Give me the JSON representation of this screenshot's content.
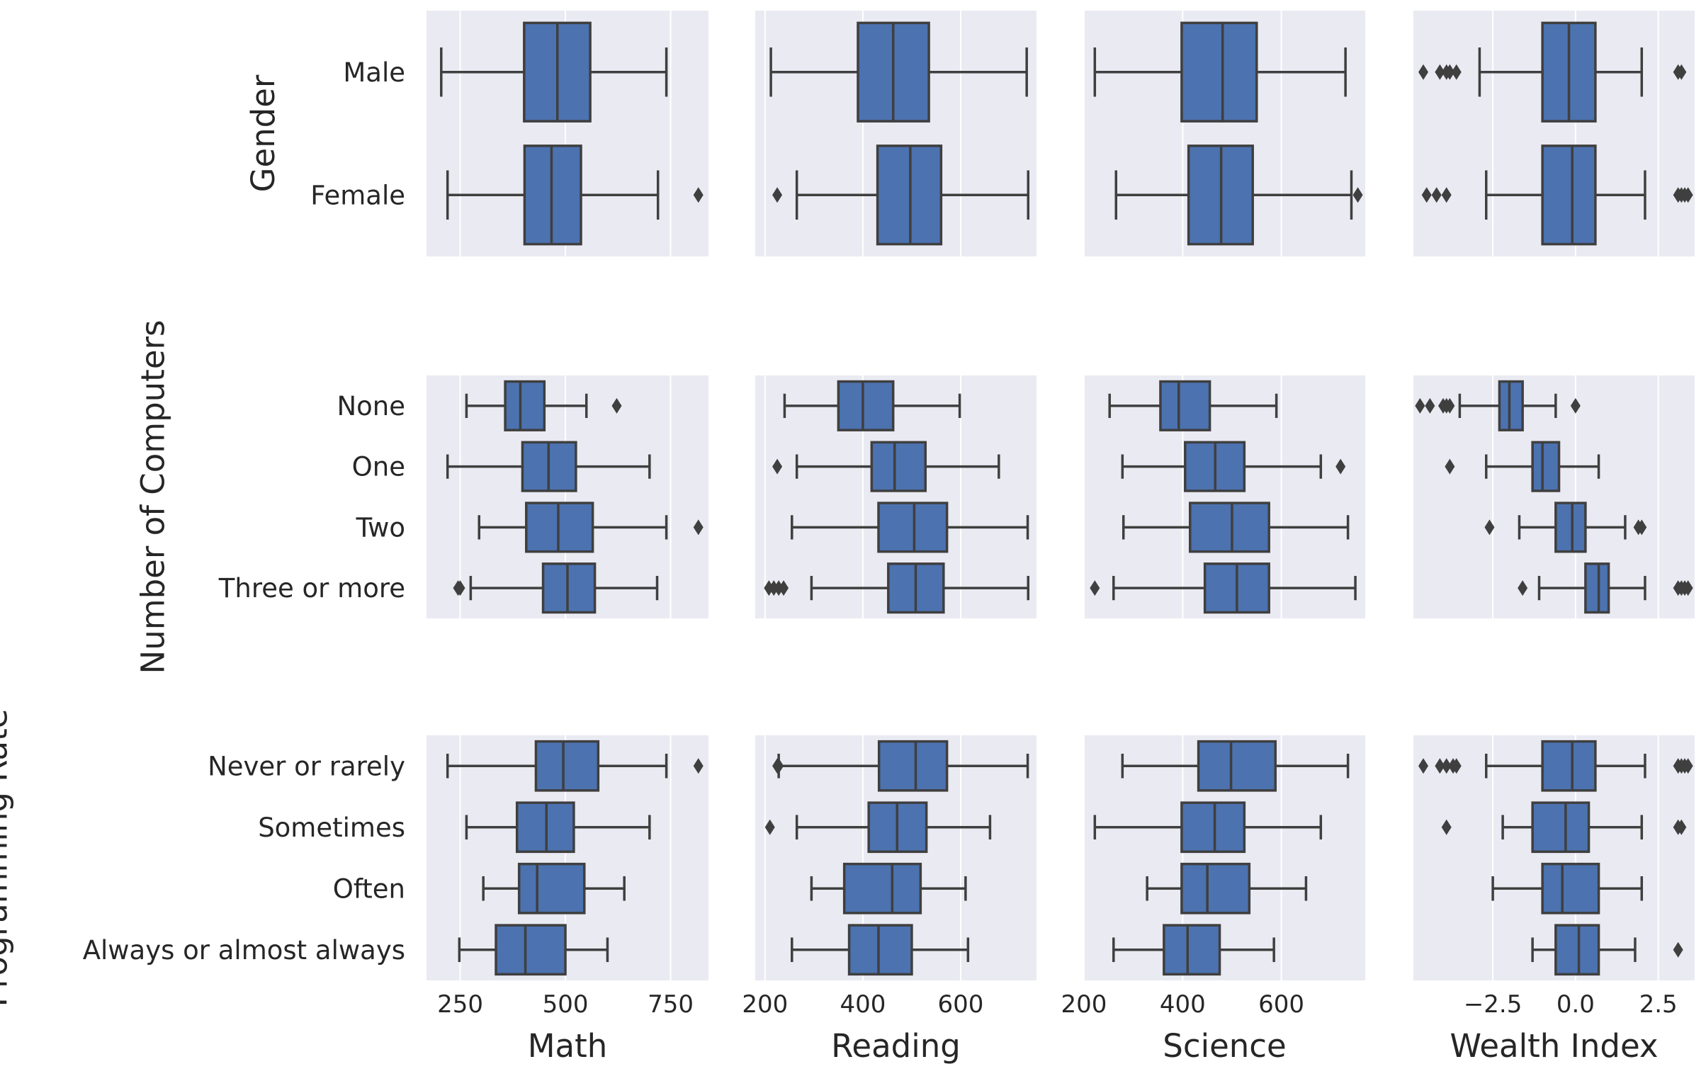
{
  "chart_data": {
    "type": "boxplot",
    "style": {
      "panel_bg": "#eaeaf2",
      "grid": "#ffffff",
      "box_fill": "#4c72b0",
      "line": "#3f3f3f",
      "text": "#262626"
    },
    "columns": [
      {
        "xlabel": "Math",
        "xlim": [
          170,
          840
        ],
        "ticks": [
          250,
          500,
          750
        ],
        "tick_labels": [
          "250",
          "500",
          "750"
        ]
      },
      {
        "xlabel": "Reading",
        "xlim": [
          180,
          755
        ],
        "ticks": [
          200,
          400,
          600
        ],
        "tick_labels": [
          "200",
          "400",
          "600"
        ]
      },
      {
        "xlabel": "Science",
        "xlim": [
          200,
          770
        ],
        "ticks": [
          200,
          400,
          600
        ],
        "tick_labels": [
          "200",
          "400",
          "600"
        ]
      },
      {
        "xlabel": "Wealth Index",
        "xlim": [
          -4.9,
          3.6
        ],
        "ticks": [
          -2.5,
          0.0,
          2.5
        ],
        "tick_labels": [
          "−2.5",
          "0.0",
          "2.5"
        ]
      }
    ],
    "rows": [
      {
        "ylabel": "Gender",
        "categories": [
          "Male",
          "Female"
        ],
        "boxes": [
          [
            {
              "whislo": 205,
              "q1": 402,
              "med": 481,
              "q3": 559,
              "whishi": 740,
              "fliers": []
            },
            {
              "whislo": 220,
              "q1": 403,
              "med": 467,
              "q3": 537,
              "whishi": 720,
              "fliers": [
                816
              ]
            }
          ],
          [
            {
              "whislo": 212,
              "q1": 390,
              "med": 462,
              "q3": 535,
              "whishi": 735,
              "fliers": []
            },
            {
              "whislo": 265,
              "q1": 430,
              "med": 497,
              "q3": 560,
              "whishi": 738,
              "fliers": [
                225
              ]
            }
          ],
          [
            {
              "whislo": 222,
              "q1": 398,
              "med": 481,
              "q3": 550,
              "whishi": 730,
              "fliers": []
            },
            {
              "whislo": 265,
              "q1": 412,
              "med": 478,
              "q3": 542,
              "whishi": 742,
              "fliers": [
                755
              ]
            }
          ],
          [
            {
              "whislo": -2.9,
              "q1": -1.0,
              "med": -0.2,
              "q3": 0.6,
              "whishi": 2.0,
              "fliers": [
                -4.6,
                -4.1,
                -3.9,
                -3.8,
                -3.6,
                3.1,
                3.2
              ]
            },
            {
              "whislo": -2.7,
              "q1": -1.0,
              "med": -0.1,
              "q3": 0.6,
              "whishi": 2.1,
              "fliers": [
                -4.5,
                -4.2,
                -3.9,
                3.1,
                3.2,
                3.3,
                3.4
              ]
            }
          ]
        ]
      },
      {
        "ylabel": "Number of Computers",
        "categories": [
          "None",
          "One",
          "Two",
          "Three or more"
        ],
        "boxes": [
          [
            {
              "whislo": 265,
              "q1": 357,
              "med": 393,
              "q3": 450,
              "whishi": 550,
              "fliers": [
                622
              ]
            },
            {
              "whislo": 220,
              "q1": 398,
              "med": 460,
              "q3": 525,
              "whishi": 700,
              "fliers": []
            },
            {
              "whislo": 295,
              "q1": 407,
              "med": 483,
              "q3": 565,
              "whishi": 740,
              "fliers": [
                816
              ]
            },
            {
              "whislo": 275,
              "q1": 447,
              "med": 505,
              "q3": 570,
              "whishi": 718,
              "fliers": [
                245,
                250
              ]
            }
          ],
          [
            {
              "whislo": 240,
              "q1": 350,
              "med": 400,
              "q3": 462,
              "whishi": 598,
              "fliers": []
            },
            {
              "whislo": 265,
              "q1": 418,
              "med": 465,
              "q3": 528,
              "whishi": 678,
              "fliers": [
                225
              ]
            },
            {
              "whislo": 255,
              "q1": 432,
              "med": 505,
              "q3": 572,
              "whishi": 737,
              "fliers": []
            },
            {
              "whislo": 295,
              "q1": 452,
              "med": 508,
              "q3": 565,
              "whishi": 738,
              "fliers": [
                208,
                218,
                228,
                238
              ]
            }
          ],
          [
            {
              "whislo": 252,
              "q1": 355,
              "med": 392,
              "q3": 455,
              "whishi": 590,
              "fliers": []
            },
            {
              "whislo": 278,
              "q1": 405,
              "med": 466,
              "q3": 525,
              "whishi": 680,
              "fliers": [
                720
              ]
            },
            {
              "whislo": 280,
              "q1": 415,
              "med": 500,
              "q3": 575,
              "whishi": 735,
              "fliers": []
            },
            {
              "whislo": 260,
              "q1": 445,
              "med": 510,
              "q3": 575,
              "whishi": 750,
              "fliers": [
                222
              ]
            }
          ],
          [
            {
              "whislo": -3.5,
              "q1": -2.3,
              "med": -2.0,
              "q3": -1.6,
              "whishi": -0.6,
              "fliers": [
                -4.7,
                -4.4,
                -4.0,
                -3.9,
                -3.8,
                0.0
              ]
            },
            {
              "whislo": -2.7,
              "q1": -1.3,
              "med": -1.0,
              "q3": -0.5,
              "whishi": 0.7,
              "fliers": [
                -3.8
              ]
            },
            {
              "whislo": -1.7,
              "q1": -0.6,
              "med": -0.1,
              "q3": 0.3,
              "whishi": 1.5,
              "fliers": [
                -2.6,
                1.9,
                2.0
              ]
            },
            {
              "whislo": -1.1,
              "q1": 0.3,
              "med": 0.7,
              "q3": 1.0,
              "whishi": 2.1,
              "fliers": [
                -1.6,
                3.1,
                3.2,
                3.3,
                3.4
              ]
            }
          ]
        ]
      },
      {
        "ylabel": "Programming Rate",
        "categories": [
          "Never or rarely",
          "Sometimes",
          "Often",
          "Always or almost always"
        ],
        "boxes": [
          [
            {
              "whislo": 220,
              "q1": 430,
              "med": 495,
              "q3": 578,
              "whishi": 740,
              "fliers": [
                816
              ]
            },
            {
              "whislo": 265,
              "q1": 385,
              "med": 455,
              "q3": 520,
              "whishi": 700,
              "fliers": []
            },
            {
              "whislo": 305,
              "q1": 390,
              "med": 433,
              "q3": 545,
              "whishi": 640,
              "fliers": []
            },
            {
              "whislo": 248,
              "q1": 335,
              "med": 405,
              "q3": 500,
              "whishi": 600,
              "fliers": []
            }
          ],
          [
            {
              "whislo": 228,
              "q1": 433,
              "med": 508,
              "q3": 572,
              "whishi": 737,
              "fliers": [
                225,
                228
              ]
            },
            {
              "whislo": 265,
              "q1": 412,
              "med": 470,
              "q3": 530,
              "whishi": 660,
              "fliers": [
                210
              ]
            },
            {
              "whislo": 295,
              "q1": 362,
              "med": 460,
              "q3": 518,
              "whishi": 610,
              "fliers": []
            },
            {
              "whislo": 255,
              "q1": 372,
              "med": 432,
              "q3": 500,
              "whishi": 615,
              "fliers": []
            }
          ],
          [
            {
              "whislo": 278,
              "q1": 432,
              "med": 498,
              "q3": 588,
              "whishi": 735,
              "fliers": []
            },
            {
              "whislo": 222,
              "q1": 398,
              "med": 465,
              "q3": 525,
              "whishi": 680,
              "fliers": []
            },
            {
              "whislo": 328,
              "q1": 398,
              "med": 450,
              "q3": 535,
              "whishi": 650,
              "fliers": []
            },
            {
              "whislo": 260,
              "q1": 362,
              "med": 410,
              "q3": 475,
              "whishi": 585,
              "fliers": []
            }
          ],
          [
            {
              "whislo": -2.7,
              "q1": -1.0,
              "med": -0.1,
              "q3": 0.6,
              "whishi": 2.1,
              "fliers": [
                -4.6,
                -4.1,
                -3.9,
                -3.7,
                -3.6,
                3.1,
                3.2,
                3.3,
                3.4
              ]
            },
            {
              "whislo": -2.2,
              "q1": -1.3,
              "med": -0.3,
              "q3": 0.4,
              "whishi": 2.0,
              "fliers": [
                -3.9,
                3.1,
                3.2
              ]
            },
            {
              "whislo": -2.5,
              "q1": -1.0,
              "med": -0.4,
              "q3": 0.7,
              "whishi": 2.0,
              "fliers": []
            },
            {
              "whislo": -1.3,
              "q1": -0.6,
              "med": 0.1,
              "q3": 0.7,
              "whishi": 1.8,
              "fliers": [
                3.1
              ]
            }
          ]
        ]
      }
    ]
  }
}
